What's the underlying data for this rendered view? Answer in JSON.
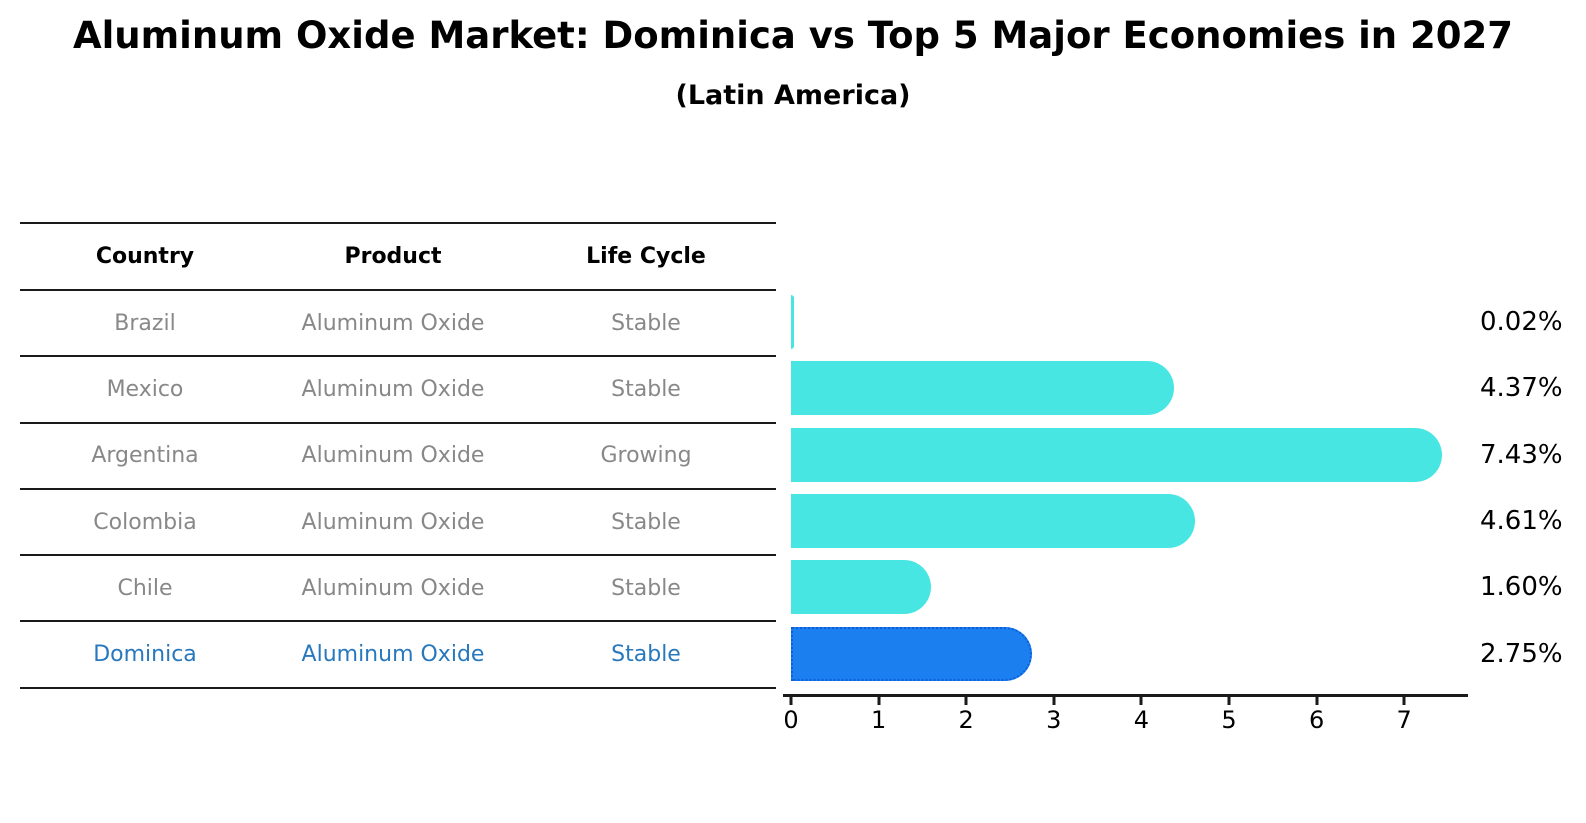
{
  "title": "Aluminum Oxide Market: Dominica vs Top 5 Major Economies in 2027",
  "subtitle": "(Latin America)",
  "colors": {
    "bar_default": "#48E6E2",
    "bar_highlight": "#1B7FF0",
    "bar_highlight_border": "#0C5FD8",
    "row_text": "#888888",
    "row_text_highlight": "#2878BE",
    "axis": "#1a1a1a"
  },
  "table": {
    "headers": [
      "Country",
      "Product",
      "Life Cycle"
    ],
    "rows": [
      {
        "country": "Brazil",
        "product": "Aluminum Oxide",
        "life_cycle": "Stable",
        "highlight": false
      },
      {
        "country": "Mexico",
        "product": "Aluminum Oxide",
        "life_cycle": "Stable",
        "highlight": false
      },
      {
        "country": "Argentina",
        "product": "Aluminum Oxide",
        "life_cycle": "Growing",
        "highlight": false
      },
      {
        "country": "Colombia",
        "product": "Aluminum Oxide",
        "life_cycle": "Stable",
        "highlight": false
      },
      {
        "country": "Chile",
        "product": "Aluminum Oxide",
        "life_cycle": "Stable",
        "highlight": false
      },
      {
        "country": "Dominica",
        "product": "Aluminum Oxide",
        "life_cycle": "Stable",
        "highlight": true
      }
    ]
  },
  "chart_data": {
    "type": "bar",
    "orientation": "horizontal",
    "title": "Aluminum Oxide Market: Dominica vs Top 5 Major Economies in 2027",
    "subtitle": "(Latin America)",
    "categories": [
      "Brazil",
      "Mexico",
      "Argentina",
      "Colombia",
      "Chile",
      "Dominica"
    ],
    "values": [
      0.02,
      4.37,
      7.43,
      4.61,
      1.6,
      2.75
    ],
    "value_labels": [
      "0.02%",
      "4.37%",
      "7.43%",
      "4.61%",
      "1.60%",
      "2.75%"
    ],
    "highlight_index": 5,
    "xlabel": "",
    "ylabel": "",
    "xlim": [
      0,
      7.75
    ],
    "xticks": [
      0,
      1,
      2,
      3,
      4,
      5,
      6,
      7
    ],
    "grid": false,
    "legend": false
  }
}
